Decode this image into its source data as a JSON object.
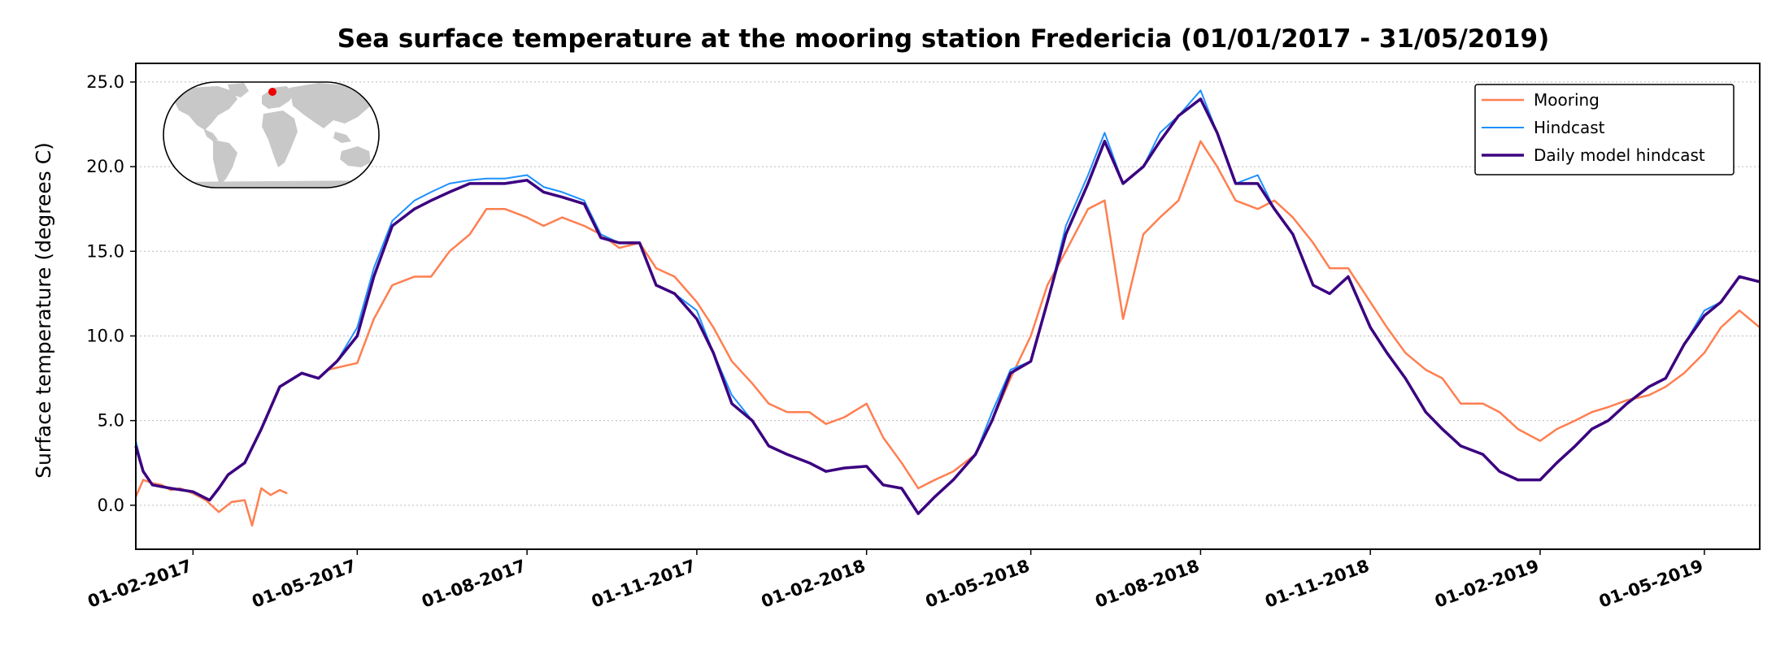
{
  "chart_data": {
    "type": "line",
    "title": "Sea surface temperature at the mooring station Fredericia (01/01/2017 - 31/05/2019)",
    "xlabel": "",
    "ylabel": "Surface temperature (degrees C)",
    "x_range": [
      "2017-01-01",
      "2019-05-31"
    ],
    "ylim": [
      -2.6,
      26.1
    ],
    "y_ticks": [
      0.0,
      5.0,
      10.0,
      15.0,
      20.0,
      25.0
    ],
    "y_tick_labels": [
      "0.0",
      "5.0",
      "10.0",
      "15.0",
      "20.0",
      "25.0"
    ],
    "x_ticks": [
      "2017-02-01",
      "2017-05-01",
      "2017-08-01",
      "2017-11-01",
      "2018-02-01",
      "2018-05-01",
      "2018-08-01",
      "2018-11-01",
      "2019-02-01",
      "2019-05-01"
    ],
    "x_tick_labels": [
      "01-02-2017",
      "01-05-2017",
      "01-08-2017",
      "01-11-2017",
      "01-02-2018",
      "01-05-2018",
      "01-08-2018",
      "01-11-2018",
      "01-02-2019",
      "01-05-2019"
    ],
    "grid": "horizontal dotted",
    "legend_position": "top-right",
    "inset": "world map with station location marker (top-left)",
    "series": [
      {
        "name": "Mooring",
        "color": "#ff7f50",
        "segments": [
          {
            "x": [
              "2017-01-01",
              "2017-01-05",
              "2017-01-10",
              "2017-01-15",
              "2017-01-20",
              "2017-01-25",
              "2017-02-01",
              "2017-02-08",
              "2017-02-15",
              "2017-02-22",
              "2017-03-01",
              "2017-03-05",
              "2017-03-10",
              "2017-03-15",
              "2017-03-20",
              "2017-03-24"
            ],
            "y": [
              0.5,
              1.5,
              1.3,
              1.2,
              0.9,
              1.0,
              0.7,
              0.3,
              -0.4,
              0.2,
              0.3,
              -1.2,
              1.0,
              0.6,
              0.9,
              0.7
            ]
          },
          {
            "x": [
              "2017-04-15",
              "2017-05-01",
              "2017-05-10",
              "2017-05-20",
              "2017-06-01",
              "2017-06-10",
              "2017-06-20",
              "2017-07-01",
              "2017-07-10",
              "2017-07-20",
              "2017-08-01",
              "2017-08-10",
              "2017-08-20",
              "2017-09-01",
              "2017-09-10",
              "2017-09-20",
              "2017-10-01",
              "2017-10-10",
              "2017-10-20",
              "2017-11-01",
              "2017-11-10",
              "2017-11-20",
              "2017-12-01",
              "2017-12-10",
              "2017-12-20",
              "2018-01-01",
              "2018-01-10",
              "2018-01-20",
              "2018-02-01",
              "2018-02-10",
              "2018-02-20",
              "2018-03-01",
              "2018-03-10",
              "2018-03-20",
              "2018-04-01",
              "2018-04-10",
              "2018-04-20",
              "2018-05-01",
              "2018-05-10",
              "2018-05-20",
              "2018-06-01",
              "2018-06-10",
              "2018-06-20",
              "2018-07-01",
              "2018-07-10",
              "2018-07-20",
              "2018-08-01",
              "2018-08-10",
              "2018-08-20",
              "2018-09-01",
              "2018-09-10",
              "2018-09-20",
              "2018-10-01",
              "2018-10-10",
              "2018-10-20",
              "2018-11-01",
              "2018-11-10",
              "2018-11-20",
              "2018-12-01",
              "2018-12-10",
              "2018-12-20",
              "2019-01-01",
              "2019-01-10",
              "2019-01-20",
              "2019-02-01",
              "2019-02-10",
              "2019-02-20",
              "2019-03-01",
              "2019-03-10",
              "2019-03-20",
              "2019-04-01",
              "2019-04-10",
              "2019-04-20",
              "2019-05-01",
              "2019-05-10",
              "2019-05-20",
              "2019-05-31"
            ],
            "y": [
              8.0,
              8.4,
              11.0,
              13.0,
              13.5,
              13.5,
              15.0,
              16.0,
              17.5,
              17.5,
              17.0,
              16.5,
              17.0,
              16.5,
              16.0,
              15.2,
              15.5,
              14.0,
              13.5,
              12.0,
              10.5,
              8.5,
              7.2,
              6.0,
              5.5,
              5.5,
              4.8,
              5.2,
              6.0,
              4.0,
              2.5,
              1.0,
              1.5,
              2.0,
              3.0,
              5.0,
              7.5,
              10.0,
              13.0,
              15.0,
              17.5,
              18.0,
              11.0,
              16.0,
              17.0,
              18.0,
              21.5,
              20.0,
              18.0,
              17.5,
              18.0,
              17.0,
              15.5,
              14.0,
              14.0,
              12.0,
              10.5,
              9.0,
              8.0,
              7.5,
              6.0,
              6.0,
              5.5,
              4.5,
              3.8,
              4.5,
              5.0,
              5.5,
              5.8,
              6.2,
              6.5,
              7.0,
              7.8,
              9.0,
              10.5,
              11.5,
              10.5
            ]
          }
        ]
      },
      {
        "name": "Hindcast",
        "color": "#1e90ff",
        "x": [
          "2017-01-01",
          "2017-01-05",
          "2017-01-10",
          "2017-01-20",
          "2017-02-01",
          "2017-02-10",
          "2017-02-15",
          "2017-02-20",
          "2017-03-01",
          "2017-03-10",
          "2017-03-20",
          "2017-04-01",
          "2017-04-10",
          "2017-04-20",
          "2017-05-01",
          "2017-05-10",
          "2017-05-20",
          "2017-06-01",
          "2017-06-10",
          "2017-06-20",
          "2017-07-01",
          "2017-07-10",
          "2017-07-20",
          "2017-08-01",
          "2017-08-10",
          "2017-08-20",
          "2017-09-01",
          "2017-09-10",
          "2017-09-20",
          "2017-10-01",
          "2017-10-10",
          "2017-10-20",
          "2017-11-01",
          "2017-11-10",
          "2017-11-20",
          "2017-12-01",
          "2017-12-10",
          "2017-12-20",
          "2018-01-01",
          "2018-01-10",
          "2018-01-20",
          "2018-02-01",
          "2018-02-10",
          "2018-02-20",
          "2018-03-01",
          "2018-03-10",
          "2018-03-20",
          "2018-04-01",
          "2018-04-10",
          "2018-04-20",
          "2018-05-01",
          "2018-05-10",
          "2018-05-20",
          "2018-06-01",
          "2018-06-10",
          "2018-06-20",
          "2018-07-01",
          "2018-07-10",
          "2018-07-20",
          "2018-08-01",
          "2018-08-10",
          "2018-08-20",
          "2018-09-01",
          "2018-09-10",
          "2018-09-20",
          "2018-10-01",
          "2018-10-10",
          "2018-10-20",
          "2018-11-01",
          "2018-11-10",
          "2018-11-20",
          "2018-12-01",
          "2018-12-10",
          "2018-12-20",
          "2019-01-01",
          "2019-01-10",
          "2019-01-20",
          "2019-02-01",
          "2019-02-10",
          "2019-02-20",
          "2019-03-01",
          "2019-03-10",
          "2019-03-20",
          "2019-04-01",
          "2019-04-10",
          "2019-04-20",
          "2019-05-01",
          "2019-05-10",
          "2019-05-20",
          "2019-05-31"
        ],
        "y": [
          3.8,
          2.0,
          1.2,
          1.0,
          0.8,
          0.3,
          1.0,
          1.8,
          2.5,
          4.5,
          7.0,
          7.8,
          7.5,
          8.5,
          10.5,
          14.0,
          16.8,
          18.0,
          18.5,
          19.0,
          19.2,
          19.3,
          19.3,
          19.5,
          18.8,
          18.5,
          18.0,
          16.0,
          15.5,
          15.5,
          13.0,
          12.5,
          11.5,
          9.0,
          6.5,
          5.0,
          3.5,
          3.0,
          2.5,
          2.0,
          2.2,
          2.3,
          1.2,
          1.0,
          -0.5,
          0.5,
          1.5,
          3.0,
          5.5,
          8.0,
          8.5,
          12.0,
          16.5,
          19.5,
          22.0,
          19.0,
          20.0,
          22.0,
          23.0,
          24.5,
          22.0,
          19.0,
          19.5,
          17.5,
          16.0,
          13.0,
          12.5,
          13.5,
          10.5,
          9.0,
          7.5,
          5.5,
          4.5,
          3.5,
          3.0,
          2.0,
          1.5,
          1.5,
          2.5,
          3.5,
          4.5,
          5.0,
          6.0,
          7.0,
          7.5,
          9.5,
          11.5,
          12.0,
          13.5,
          13.2
        ]
      },
      {
        "name": "Daily model hindcast",
        "color": "#3b0080",
        "x": [
          "2017-01-01",
          "2017-01-05",
          "2017-01-10",
          "2017-01-20",
          "2017-02-01",
          "2017-02-10",
          "2017-02-15",
          "2017-02-20",
          "2017-03-01",
          "2017-03-10",
          "2017-03-20",
          "2017-04-01",
          "2017-04-10",
          "2017-04-20",
          "2017-05-01",
          "2017-05-10",
          "2017-05-20",
          "2017-06-01",
          "2017-06-10",
          "2017-06-20",
          "2017-07-01",
          "2017-07-10",
          "2017-07-20",
          "2017-08-01",
          "2017-08-10",
          "2017-08-20",
          "2017-09-01",
          "2017-09-10",
          "2017-09-20",
          "2017-10-01",
          "2017-10-10",
          "2017-10-20",
          "2017-11-01",
          "2017-11-10",
          "2017-11-20",
          "2017-12-01",
          "2017-12-10",
          "2017-12-20",
          "2018-01-01",
          "2018-01-10",
          "2018-01-20",
          "2018-02-01",
          "2018-02-10",
          "2018-02-20",
          "2018-03-01",
          "2018-03-10",
          "2018-03-20",
          "2018-04-01",
          "2018-04-10",
          "2018-04-20",
          "2018-05-01",
          "2018-05-10",
          "2018-05-20",
          "2018-06-01",
          "2018-06-10",
          "2018-06-20",
          "2018-07-01",
          "2018-07-10",
          "2018-07-20",
          "2018-08-01",
          "2018-08-10",
          "2018-08-20",
          "2018-09-01",
          "2018-09-10",
          "2018-09-20",
          "2018-10-01",
          "2018-10-10",
          "2018-10-20",
          "2018-11-01",
          "2018-11-10",
          "2018-11-20",
          "2018-12-01",
          "2018-12-10",
          "2018-12-20",
          "2019-01-01",
          "2019-01-10",
          "2019-01-20",
          "2019-02-01",
          "2019-02-10",
          "2019-02-20",
          "2019-03-01",
          "2019-03-10",
          "2019-03-20",
          "2019-04-01",
          "2019-04-10",
          "2019-04-20",
          "2019-05-01",
          "2019-05-10",
          "2019-05-20",
          "2019-05-31"
        ],
        "y": [
          3.5,
          2.0,
          1.2,
          1.0,
          0.8,
          0.3,
          1.0,
          1.8,
          2.5,
          4.5,
          7.0,
          7.8,
          7.5,
          8.5,
          10.0,
          13.5,
          16.5,
          17.5,
          18.0,
          18.5,
          19.0,
          19.0,
          19.0,
          19.2,
          18.5,
          18.2,
          17.8,
          15.8,
          15.5,
          15.5,
          13.0,
          12.5,
          11.0,
          9.0,
          6.0,
          5.0,
          3.5,
          3.0,
          2.5,
          2.0,
          2.2,
          2.3,
          1.2,
          1.0,
          -0.5,
          0.5,
          1.5,
          3.0,
          5.0,
          7.8,
          8.5,
          12.0,
          16.0,
          19.0,
          21.5,
          19.0,
          20.0,
          21.5,
          23.0,
          24.0,
          22.0,
          19.0,
          19.0,
          17.5,
          16.0,
          13.0,
          12.5,
          13.5,
          10.5,
          9.0,
          7.5,
          5.5,
          4.5,
          3.5,
          3.0,
          2.0,
          1.5,
          1.5,
          2.5,
          3.5,
          4.5,
          5.0,
          6.0,
          7.0,
          7.5,
          9.5,
          11.2,
          12.0,
          13.5,
          13.2
        ]
      }
    ],
    "station_marker_color": "#ee0000"
  }
}
